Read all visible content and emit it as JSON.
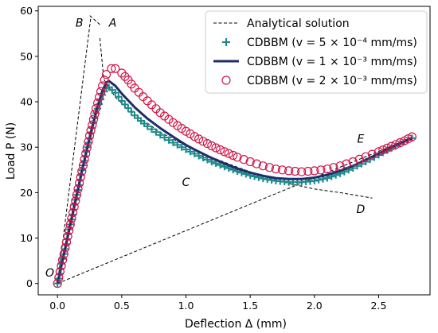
{
  "chart_data": {
    "type": "line",
    "title": "",
    "xlabel": "Deflection Δ (mm)",
    "ylabel": "Load P (N)",
    "xlim": [
      -0.15,
      2.9
    ],
    "ylim": [
      -2.5,
      61
    ],
    "x_ticks": [
      0.0,
      0.5,
      1.0,
      1.5,
      2.0,
      2.5
    ],
    "x_tick_labels": [
      "0.0",
      "0.5",
      "1.0",
      "1.5",
      "2.0",
      "2.5"
    ],
    "y_ticks": [
      0,
      10,
      20,
      30,
      40,
      50,
      60
    ],
    "y_tick_labels": [
      "0",
      "10",
      "20",
      "30",
      "40",
      "50",
      "60"
    ],
    "grid": false,
    "legend_position": "top-right",
    "series": [
      {
        "name": "Analytical solution",
        "style": "dashed",
        "color": "#000000",
        "segments": [
          [
            [
              0.0,
              0.0
            ],
            [
              0.26,
              58.7
            ]
          ],
          [
            [
              0.33,
              57.0
            ],
            [
              0.25,
              59.0
            ]
          ],
          [
            [
              0.33,
              54.0
            ],
            [
              0.36,
              45.0
            ],
            [
              0.45,
              41.0
            ],
            [
              0.6,
              37.2
            ],
            [
              0.8,
              33.3
            ],
            [
              1.0,
              30.3
            ],
            [
              1.2,
              27.8
            ],
            [
              1.4,
              25.6
            ],
            [
              1.6,
              23.6
            ],
            [
              1.8,
              22.0
            ],
            [
              2.0,
              20.8
            ],
            [
              2.2,
              20.0
            ],
            [
              2.45,
              18.8
            ]
          ],
          [
            [
              0.0,
              0.0
            ],
            [
              2.75,
              32.0
            ]
          ]
        ]
      },
      {
        "name": "CDBBM (v = 5 × 10⁻⁴ mm/ms)",
        "marker": "plus",
        "color": "#1b8a8a",
        "x": [
          0.0,
          0.05,
          0.1,
          0.15,
          0.2,
          0.25,
          0.3,
          0.35,
          0.38,
          0.4,
          0.45,
          0.5,
          0.6,
          0.7,
          0.8,
          0.9,
          1.0,
          1.1,
          1.2,
          1.3,
          1.4,
          1.5,
          1.6,
          1.7,
          1.8,
          1.9,
          2.0,
          2.1,
          2.2,
          2.3,
          2.4,
          2.5,
          2.6,
          2.7,
          2.76
        ],
        "y": [
          0.0,
          6.5,
          13.0,
          19.5,
          26.0,
          32.0,
          37.5,
          41.5,
          43.0,
          43.2,
          42.0,
          40.2,
          37.0,
          34.6,
          32.7,
          31.0,
          29.5,
          28.1,
          26.8,
          25.7,
          24.7,
          23.8,
          23.1,
          22.6,
          22.3,
          22.3,
          22.6,
          23.2,
          24.2,
          25.4,
          26.8,
          28.3,
          29.8,
          31.2,
          32.0
        ]
      },
      {
        "name": "CDBBM (v = 1 × 10⁻³ mm/ms)",
        "marker": "line",
        "color": "#1f2d6b",
        "x": [
          0.0,
          0.05,
          0.1,
          0.15,
          0.2,
          0.25,
          0.3,
          0.35,
          0.38,
          0.4,
          0.45,
          0.5,
          0.6,
          0.7,
          0.8,
          0.9,
          1.0,
          1.1,
          1.2,
          1.3,
          1.4,
          1.5,
          1.6,
          1.7,
          1.8,
          1.9,
          2.0,
          2.1,
          2.2,
          2.3,
          2.4,
          2.5,
          2.6,
          2.7,
          2.76
        ],
        "y": [
          0.0,
          6.5,
          13.0,
          19.5,
          26.0,
          32.0,
          37.8,
          42.5,
          44.2,
          44.6,
          43.5,
          41.8,
          38.8,
          36.3,
          34.2,
          32.3,
          30.5,
          29.0,
          27.6,
          26.4,
          25.3,
          24.4,
          23.7,
          23.2,
          23.0,
          23.0,
          23.3,
          23.9,
          24.8,
          25.9,
          27.2,
          28.6,
          30.0,
          31.3,
          32.0
        ]
      },
      {
        "name": "CDBBM (v = 2 × 10⁻³ mm/ms)",
        "marker": "circle",
        "color": "#d0184a",
        "x": [
          0.0,
          0.05,
          0.1,
          0.15,
          0.2,
          0.25,
          0.3,
          0.35,
          0.38,
          0.42,
          0.45,
          0.5,
          0.55,
          0.6,
          0.7,
          0.8,
          0.9,
          1.0,
          1.1,
          1.2,
          1.3,
          1.4,
          1.5,
          1.6,
          1.7,
          1.8,
          1.9,
          2.0,
          2.1,
          2.2,
          2.3,
          2.4,
          2.5,
          2.6,
          2.7,
          2.76
        ],
        "y": [
          0.0,
          6.5,
          13.0,
          19.5,
          26.0,
          32.5,
          38.5,
          43.5,
          46.0,
          47.3,
          47.3,
          46.3,
          44.8,
          43.0,
          40.2,
          37.6,
          35.4,
          33.5,
          31.8,
          30.3,
          29.0,
          27.8,
          26.8,
          25.9,
          25.2,
          24.8,
          24.6,
          24.8,
          25.2,
          25.9,
          26.8,
          27.9,
          29.0,
          30.2,
          31.4,
          32.3
        ]
      }
    ],
    "annotations": [
      {
        "text": "O",
        "x": -0.06,
        "y": 1.5
      },
      {
        "text": "B",
        "x": 0.17,
        "y": 56.5
      },
      {
        "text": "A",
        "x": 0.43,
        "y": 56.5
      },
      {
        "text": "C",
        "x": 1.0,
        "y": 21.5
      },
      {
        "text": "E",
        "x": 2.36,
        "y": 31.0
      },
      {
        "text": "D",
        "x": 2.36,
        "y": 15.5
      }
    ]
  }
}
